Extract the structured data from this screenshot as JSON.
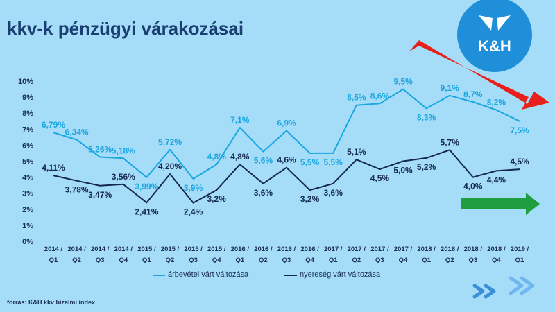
{
  "title": "kkv-k pénzügyi várakozásai",
  "source": "forrás: K&H kkv bizalmi index",
  "logo": {
    "text": "K&H",
    "color": "#1e8fd8"
  },
  "colors": {
    "background": "#a5dcf8",
    "series1": "#1aa6e0",
    "series2": "#14284f",
    "axis_text": "#1a2e50",
    "down_arrow": "#e8201c",
    "flat_arrow": "#1f9e3f"
  },
  "chart_data": {
    "type": "line",
    "categories": [
      [
        "2014 /",
        "Q1"
      ],
      [
        "2014 /",
        "Q2"
      ],
      [
        "2014 /",
        "Q3"
      ],
      [
        "2014 /",
        "Q4"
      ],
      [
        "2015 /",
        "Q1"
      ],
      [
        "2015 /",
        "Q2"
      ],
      [
        "2015 /",
        "Q3"
      ],
      [
        "2015 /",
        "Q4"
      ],
      [
        "2016 /",
        "Q1"
      ],
      [
        "2016 /",
        "Q2"
      ],
      [
        "2016 /",
        "Q3"
      ],
      [
        "2016 /",
        "Q4"
      ],
      [
        "2017 /",
        "Q1"
      ],
      [
        "2017 /",
        "Q2"
      ],
      [
        "2017 /",
        "Q3"
      ],
      [
        "2017 /",
        "Q4"
      ],
      [
        "2018 /",
        "Q1"
      ],
      [
        "2018 /",
        "Q2"
      ],
      [
        "2018 /",
        "Q3"
      ],
      [
        "2018 /",
        "Q4"
      ],
      [
        "2019 /",
        "Q1"
      ]
    ],
    "y_ticks": [
      "0%",
      "1%",
      "2%",
      "3%",
      "4%",
      "5%",
      "6%",
      "7%",
      "8%",
      "9%",
      "10%"
    ],
    "ylim": [
      0,
      10
    ],
    "grid": false,
    "legend_position": "bottom",
    "series": [
      {
        "name": "árbevétel várt változása",
        "values": [
          6.79,
          6.34,
          5.26,
          5.18,
          3.99,
          5.72,
          3.9,
          4.8,
          7.1,
          5.6,
          6.9,
          5.5,
          5.5,
          8.5,
          8.6,
          9.5,
          8.3,
          9.1,
          8.7,
          8.2,
          7.5
        ],
        "labels": [
          "6,79%",
          "6,34%",
          "5,26%",
          "5,18%",
          "3,99%",
          "5,72%",
          "3,9%",
          "4,8%",
          "7,1%",
          "5,6%",
          "6,9%",
          "5,5%",
          "5,5%",
          "8,5%",
          "8,6%",
          "9,5%",
          "8,3%",
          "9,1%",
          "8,7%",
          "8,2%",
          "7,5%"
        ]
      },
      {
        "name": "nyereség várt változása",
        "values": [
          4.11,
          3.78,
          3.47,
          3.56,
          2.41,
          4.2,
          2.4,
          3.2,
          4.8,
          3.6,
          4.6,
          3.2,
          3.6,
          5.1,
          4.5,
          5.0,
          5.2,
          5.7,
          4.0,
          4.4,
          4.5
        ],
        "labels": [
          "4,11%",
          "3,78%",
          "3,47%",
          "3,56%",
          "2,41%",
          "4,20%",
          "2,4%",
          "3,2%",
          "4,8%",
          "3,6%",
          "4,6%",
          "3,2%",
          "3,6%",
          "5,1%",
          "4,5%",
          "5,0%",
          "5,2%",
          "5,7%",
          "4,0%",
          "4,4%",
          "4,5%"
        ]
      }
    ]
  }
}
